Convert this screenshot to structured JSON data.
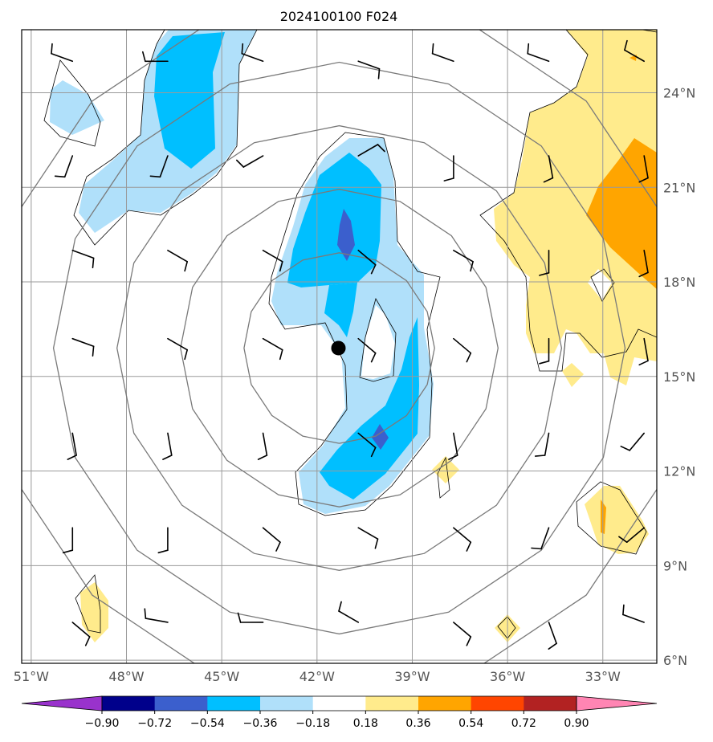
{
  "chart_data": {
    "type": "contourf-map",
    "title": "2024100100 F024",
    "lon_ticks": [
      "51°W",
      "48°W",
      "45°W",
      "42°W",
      "39°W",
      "36°W",
      "33°W"
    ],
    "lat_ticks": [
      "24°N",
      "21°N",
      "18°N",
      "15°N",
      "12°N",
      "9°N",
      "6°N"
    ],
    "lon_values": [
      -51,
      -48,
      -45,
      -42,
      -39,
      -36,
      -33
    ],
    "lat_values": [
      24,
      21,
      18,
      15,
      12,
      9,
      6
    ],
    "xlim": [
      -51.3,
      -31.3
    ],
    "ylim": [
      5.9,
      26.0
    ],
    "center": {
      "lon": -41.3,
      "lat": 15.9
    },
    "range_rings_deg": [
      3,
      5,
      7,
      9,
      11
    ],
    "colorbar": {
      "levels": [
        "−0.90",
        "−0.72",
        "−0.54",
        "−0.36",
        "−0.18",
        "0.18",
        "0.36",
        "0.54",
        "0.72",
        "0.90"
      ],
      "level_values": [
        -0.9,
        -0.72,
        -0.54,
        -0.36,
        -0.18,
        0.18,
        0.36,
        0.54,
        0.72,
        0.9
      ],
      "colors": [
        "#9932cc",
        "#00008b",
        "#3b5fcd",
        "#00bfff",
        "#b0e0fa",
        "#ffffff",
        "#ffeb8c",
        "#ffa500",
        "#ff4500",
        "#b22222",
        "#ff85b3"
      ],
      "extend": "both"
    },
    "wind_barb_grid": {
      "lons": [
        -49.7,
        -46.7,
        -43.7,
        -40.7,
        -37.7,
        -34.7,
        -31.7
      ],
      "lats": [
        25,
        22,
        19,
        16.2,
        13.2,
        10.2,
        7.2
      ]
    }
  }
}
